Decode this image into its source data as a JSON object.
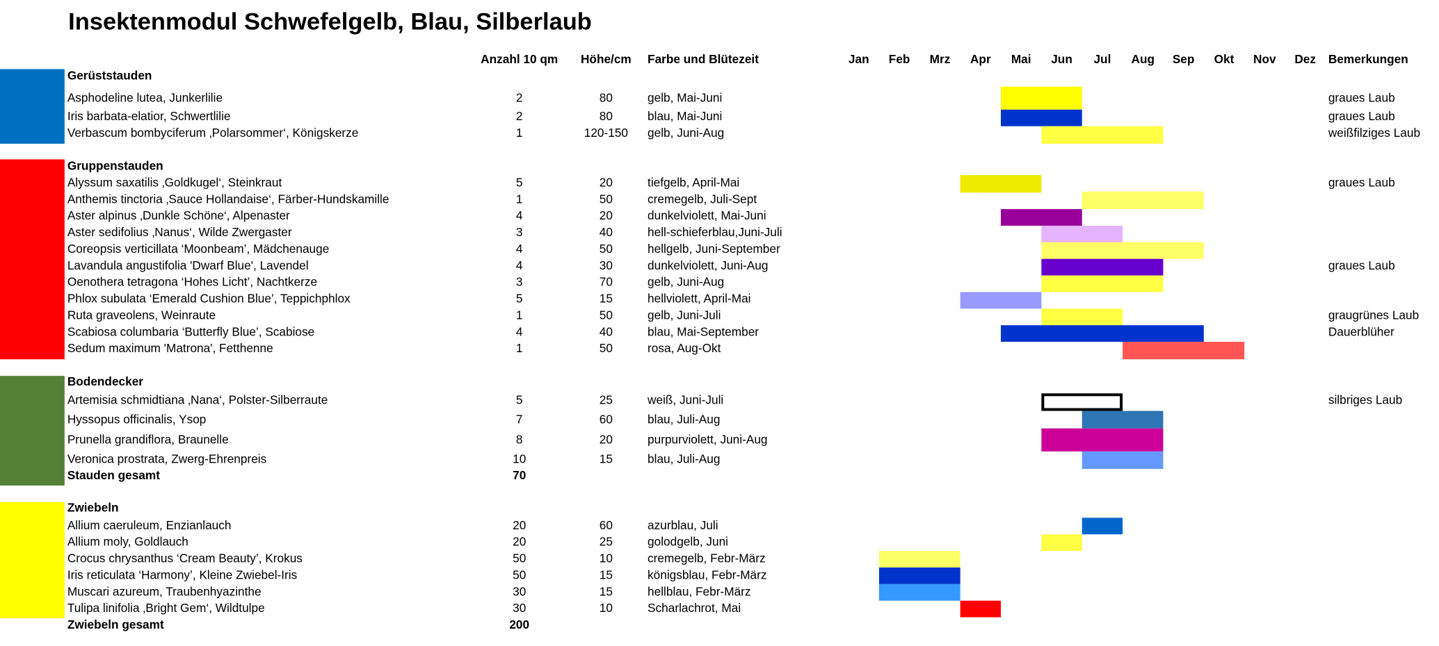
{
  "title": "Insektenmodul Schwefelgelb, Blau, Silberlaub",
  "header": {
    "anzahl": "Anzahl 10 qm",
    "hoehe": "Höhe/cm",
    "farbe": "Farbe und Blütezeit",
    "months": [
      "Jan",
      "Feb",
      "Mrz",
      "Apr",
      "Mai",
      "Jun",
      "Jul",
      "Aug",
      "Sep",
      "Okt",
      "Nov",
      "Dez"
    ],
    "bemerkungen": "Bemerkungen"
  },
  "groups": [
    {
      "name": "Gerüststauden",
      "rows": [
        {
          "name": "Asphodeline lutea, Junkerlilie",
          "count": 2,
          "height": 80,
          "bloom": "gelb, Mai-Juni",
          "note": "graues Laub"
        },
        {
          "name": "Iris barbata-elatior, Schwertlilie",
          "count": 2,
          "height": 80,
          "bloom": "blau, Mai-Juni",
          "note": "graues Laub"
        },
        {
          "name": "Verbascum bombyciferum ‚Polarsommer‘, Königskerze",
          "count": 1,
          "height": "120-150",
          "bloom": "gelb, Juni-Aug",
          "note": "weißfilziges Laub"
        }
      ]
    },
    {
      "name": "Gruppenstauden",
      "rows": [
        {
          "name": "Alyssum saxatilis ‚Goldkugel‘, Steinkraut",
          "count": 5,
          "height": 20,
          "bloom": "tiefgelb, April-Mai",
          "note": "graues Laub"
        },
        {
          "name": "Anthemis tinctoria ‚Sauce Hollandaise‘, Färber-Hundskamille",
          "count": 1,
          "height": 50,
          "bloom": "cremegelb, Juli-Sept"
        },
        {
          "name": "Aster alpinus ‚Dunkle Schöne‘, Alpenaster",
          "count": 4,
          "height": 20,
          "bloom": "dunkelviolett, Mai-Juni"
        },
        {
          "name": "Aster sedifolius ‚Nanus‘, Wilde Zwergaster",
          "count": 3,
          "height": 40,
          "bloom": "hell-schieferblau,Juni-Juli"
        },
        {
          "name": "Coreopsis verticillata ‘Moonbeam’, Mädchenauge",
          "count": 4,
          "height": 50,
          "bloom": "hellgelb, Juni-September"
        },
        {
          "name": "Lavandula angustifolia 'Dwarf Blue', Lavendel",
          "count": 4,
          "height": 30,
          "bloom": "dunkelviolett, Juni-Aug",
          "note": "graues Laub"
        },
        {
          "name": "Oenothera tetragona ‘Hohes Licht’, Nachtkerze",
          "count": 3,
          "height": 70,
          "bloom": "gelb, Juni-Aug"
        },
        {
          "name": "Phlox subulata ‘Emerald Cushion Blue’, Teppichphlox",
          "count": 5,
          "height": 15,
          "bloom": "hellviolett, April-Mai"
        },
        {
          "name": "Ruta graveolens, Weinraute",
          "count": 1,
          "height": 50,
          "bloom": "gelb, Juni-Juli",
          "note": "graugrünes Laub"
        },
        {
          "name": "Scabiosa columbaria ‘Butterfly Blue’, Scabiose",
          "count": 4,
          "height": 40,
          "bloom": "blau, Mai-September",
          "note": "Dauerblüher"
        },
        {
          "name": "Sedum maximum 'Matrona', Fetthenne",
          "count": 1,
          "height": 50,
          "bloom": "rosa, Aug-Okt"
        }
      ]
    },
    {
      "name": "Bodendecker",
      "rows": [
        {
          "name": "Artemisia schmidtiana ‚Nana‘, Polster-Silberraute",
          "count": 5,
          "height": 25,
          "bloom": "weiß, Juni-Juli",
          "note": "silbriges Laub"
        },
        {
          "name": "Hyssopus officinalis, Ysop",
          "count": 7,
          "height": 60,
          "bloom": "blau, Juli-Aug"
        },
        {
          "name": "Prunella grandiflora, Braunelle",
          "count": 8,
          "height": 20,
          "bloom": "purpurviolett, Juni-Aug"
        },
        {
          "name": "Veronica prostrata, Zwerg-Ehrenpreis",
          "count": 10,
          "height": 15,
          "bloom": "blau, Juli-Aug"
        }
      ],
      "total": {
        "label": "Stauden gesamt",
        "count": 70
      }
    },
    {
      "name": "Zwiebeln",
      "rows": [
        {
          "name": "Allium caeruleum, Enzianlauch",
          "count": 20,
          "height": 60,
          "bloom": "azurblau, Juli"
        },
        {
          "name": "Allium moly, Goldlauch",
          "count": 20,
          "height": 25,
          "bloom": "golodgelb, Juni"
        },
        {
          "name": "Crocus chrysanthus ‘Cream Beauty’, Krokus",
          "count": 50,
          "height": 10,
          "bloom": "cremegelb, Febr-März"
        },
        {
          "name": "Iris reticulata ‘Harmony’, Kleine Zwiebel-Iris",
          "count": 50,
          "height": 15,
          "bloom": "königsblau, Febr-März"
        },
        {
          "name": "Muscari azureum, Traubenhyazinthe",
          "count": 30,
          "height": 15,
          "bloom": "hellblau, Febr-März"
        },
        {
          "name": "Tulipa linifolia ‚Bright Gem‘, Wildtulpe",
          "count": 30,
          "height": 10,
          "bloom": "Scharlachrot, Mai"
        }
      ],
      "total": {
        "label": "Zwiebeln gesamt",
        "count": 200
      }
    }
  ]
}
